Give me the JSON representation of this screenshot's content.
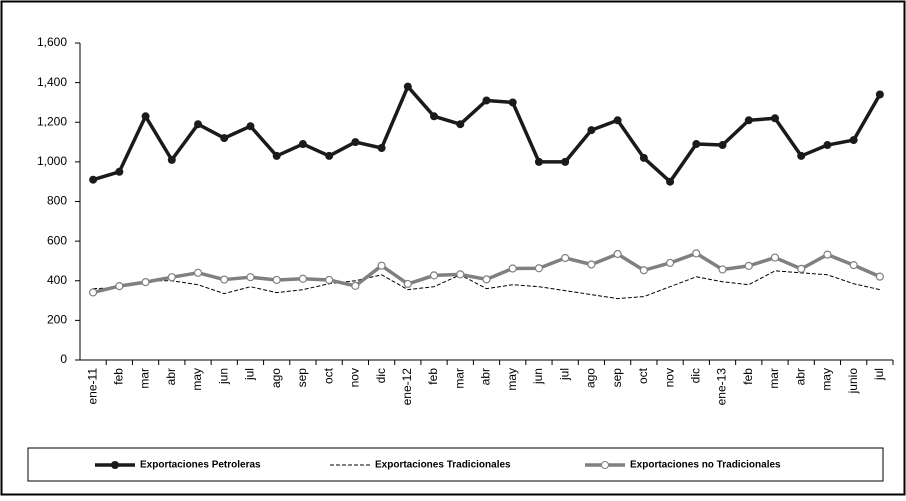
{
  "chart_data": {
    "type": "line",
    "categories": [
      "ene-11",
      "feb",
      "mar",
      "abr",
      "may",
      "jun",
      "jul",
      "ago",
      "sep",
      "oct",
      "nov",
      "dic",
      "ene-12",
      "feb",
      "mar",
      "abr",
      "may",
      "jun",
      "jul",
      "ago",
      "sep",
      "oct",
      "nov",
      "dic",
      "ene-13",
      "feb",
      "mar",
      "abr",
      "may",
      "junio",
      "jul"
    ],
    "series": [
      {
        "name": "Exportaciones Petroleras",
        "color": "#1a1a1a",
        "line_width": 3.5,
        "line_style": "solid",
        "marker": "filled",
        "values": [
          910,
          950,
          1230,
          1010,
          1190,
          1120,
          1180,
          1030,
          1090,
          1030,
          1100,
          1070,
          1380,
          1230,
          1190,
          1310,
          1300,
          1000,
          1000,
          1160,
          1210,
          1020,
          900,
          1090,
          1085,
          1210,
          1220,
          1030,
          1085,
          1110,
          1340
        ]
      },
      {
        "name": "Exportaciones Tradicionales",
        "color": "#000000",
        "line_width": 1,
        "line_style": "dashed",
        "marker": "none",
        "values": [
          360,
          365,
          400,
          400,
          380,
          335,
          370,
          340,
          355,
          385,
          400,
          430,
          355,
          370,
          430,
          360,
          380,
          370,
          350,
          330,
          310,
          320,
          370,
          420,
          395,
          380,
          450,
          440,
          430,
          385,
          355
        ]
      },
      {
        "name": "Exportaciones no Tradicionales",
        "color": "#808080",
        "line_width": 3.5,
        "line_style": "solid",
        "marker": "open",
        "values": [
          341,
          373,
          393,
          418,
          440,
          406,
          418,
          404,
          410,
          404,
          374,
          476,
          384,
          427,
          432,
          407,
          462,
          463,
          515,
          482,
          535,
          453,
          490,
          538,
          457,
          475,
          517,
          460,
          532,
          479,
          421
        ]
      }
    ],
    "ylim": [
      0,
      1600
    ],
    "yticks": [
      0,
      200,
      400,
      600,
      800,
      {
        "value": 1000,
        "label": "1,000"
      },
      {
        "value": 1200,
        "label": "1,200"
      },
      {
        "value": 1400,
        "label": "1,400"
      },
      {
        "value": 1600,
        "label": "1,600"
      }
    ],
    "grid": false
  }
}
